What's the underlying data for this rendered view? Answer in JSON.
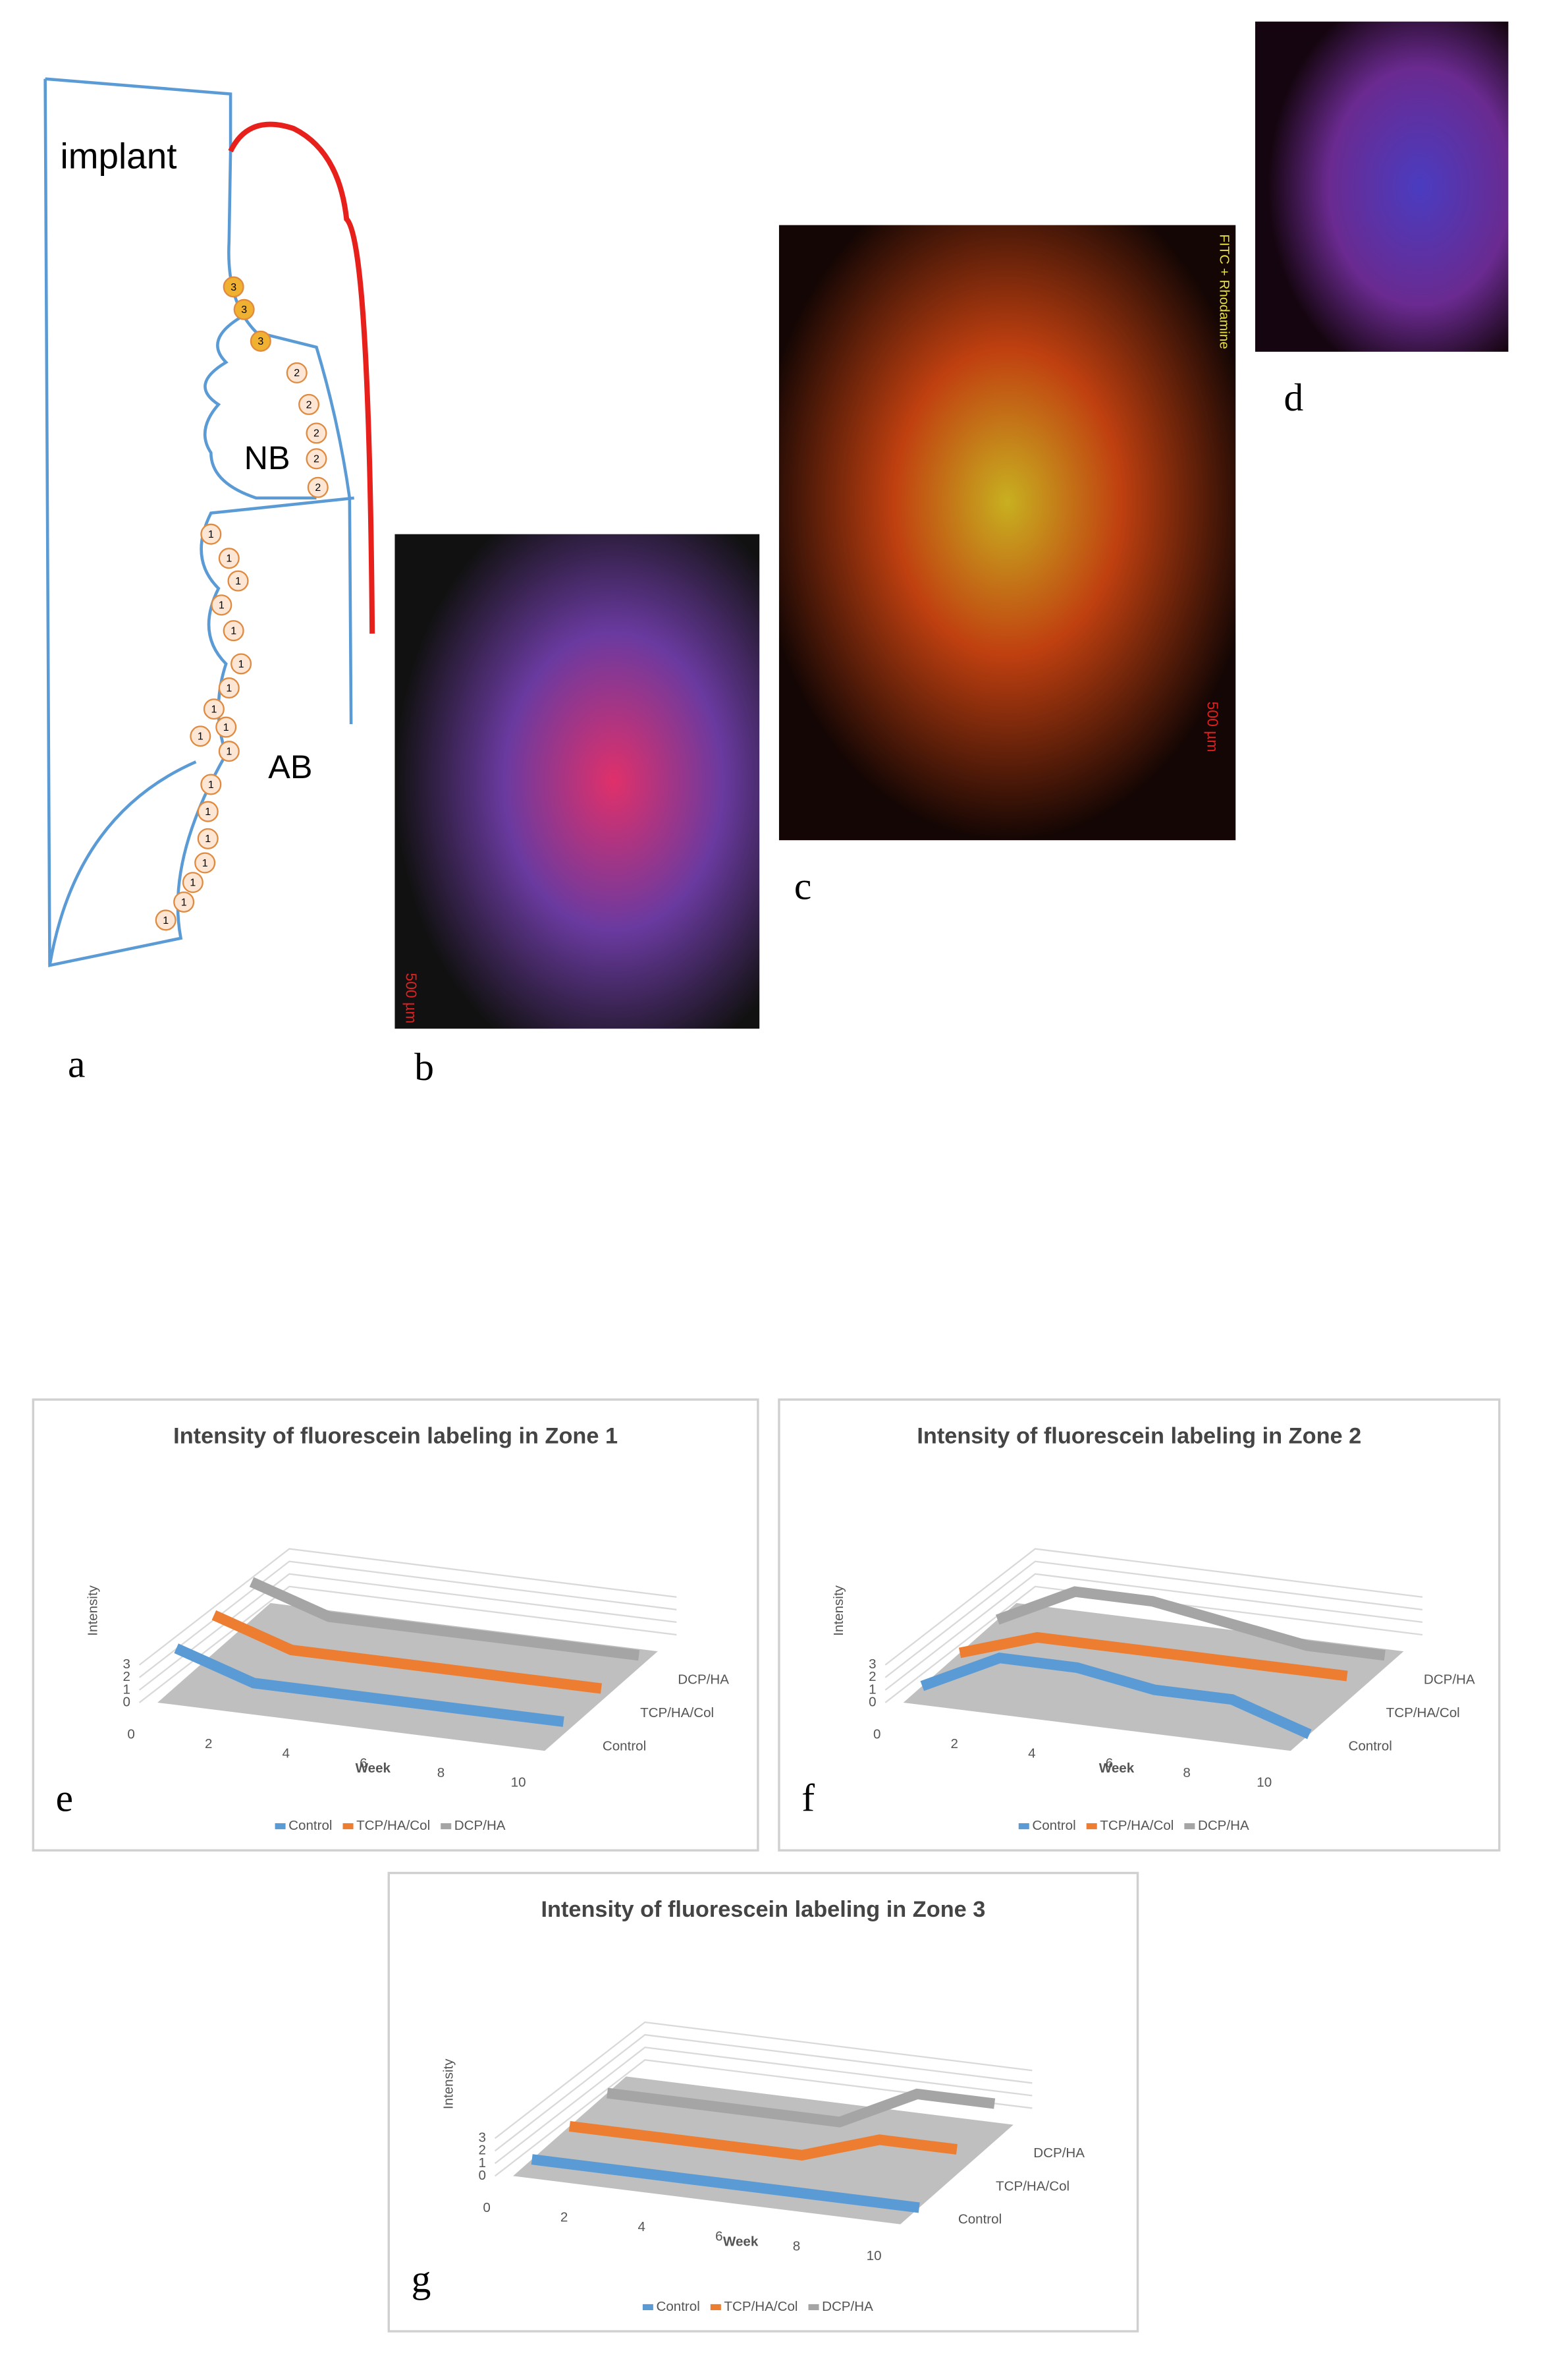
{
  "schematic": {
    "label": "a",
    "texts": [
      "implant",
      "NB",
      "AB"
    ],
    "markers": [
      "3",
      "3",
      "3",
      "2",
      "2",
      "2",
      "2",
      "2",
      "1",
      "1",
      "1",
      "1",
      "1",
      "1",
      "1",
      "1",
      "1",
      "1",
      "1",
      "1",
      "1",
      "1",
      "1",
      "1",
      "1",
      "1"
    ]
  },
  "micrographs": {
    "b": {
      "label": "b",
      "scale": "500 µm"
    },
    "c": {
      "label": "c",
      "scale": "500 µm",
      "stain": "FITC + Rhodamine"
    },
    "d": {
      "label": "d"
    }
  },
  "chart_data": [
    {
      "type": "line3d",
      "title": "Intensity of  fluorescein labeling  in Zone 1",
      "annotation": "e",
      "x": [
        0,
        2,
        4,
        6,
        8,
        10
      ],
      "xlim": [
        0,
        10
      ],
      "xticks": [
        0,
        2,
        4,
        6,
        8,
        10
      ],
      "ylim": [
        0,
        3
      ],
      "yticks": [
        0,
        1,
        2,
        3
      ],
      "x_label": "Week",
      "y_label": "Intensity",
      "grid": true,
      "series": [
        {
          "name": "Control",
          "color": "#5b9bd5",
          "values": [
            3,
            1,
            1,
            1,
            1,
            1
          ]
        },
        {
          "name": "TCP/HA/Col",
          "color": "#ed7d31",
          "values": [
            3,
            1,
            1,
            1,
            1,
            1
          ]
        },
        {
          "name": "DCP/HA",
          "color": "#a5a5a5",
          "values": [
            3,
            1,
            1,
            1,
            1,
            1
          ]
        }
      ]
    },
    {
      "type": "line3d",
      "title": "Intensity of  fluorescein labeling  in Zone 2",
      "annotation": "f",
      "x": [
        0,
        2,
        4,
        6,
        8,
        10
      ],
      "xlim": [
        0,
        10
      ],
      "xticks": [
        0,
        2,
        4,
        6,
        8,
        10
      ],
      "ylim": [
        0,
        3
      ],
      "yticks": [
        0,
        1,
        2,
        3
      ],
      "x_label": "Week",
      "y_label": "Intensity",
      "grid": true,
      "series": [
        {
          "name": "Control",
          "color": "#5b9bd5",
          "values": [
            0,
            3,
            3,
            2,
            2,
            0
          ]
        },
        {
          "name": "TCP/HA/Col",
          "color": "#ed7d31",
          "values": [
            0,
            2,
            2,
            2,
            2,
            2
          ]
        },
        {
          "name": "DCP/HA",
          "color": "#a5a5a5",
          "values": [
            0,
            3,
            3,
            2,
            1,
            1
          ]
        }
      ]
    },
    {
      "type": "line3d",
      "title": "Intensity of  fluorescein labeling  in Zone 3",
      "annotation": "g",
      "x": [
        0,
        2,
        4,
        6,
        8,
        10
      ],
      "xlim": [
        0,
        10
      ],
      "xticks": [
        0,
        2,
        4,
        6,
        8,
        10
      ],
      "ylim": [
        0,
        3
      ],
      "yticks": [
        0,
        1,
        2,
        3
      ],
      "x_label": "Week",
      "y_label": "Intensity",
      "grid": true,
      "series": [
        {
          "name": "Control",
          "color": "#5b9bd5",
          "values": [
            0,
            0,
            0,
            0,
            0,
            0
          ]
        },
        {
          "name": "TCP/HA/Col",
          "color": "#ed7d31",
          "values": [
            0,
            0,
            0,
            0,
            2,
            2
          ]
        },
        {
          "name": "DCP/HA",
          "color": "#a5a5a5",
          "values": [
            0,
            0,
            0,
            0,
            3,
            3
          ]
        }
      ]
    }
  ]
}
